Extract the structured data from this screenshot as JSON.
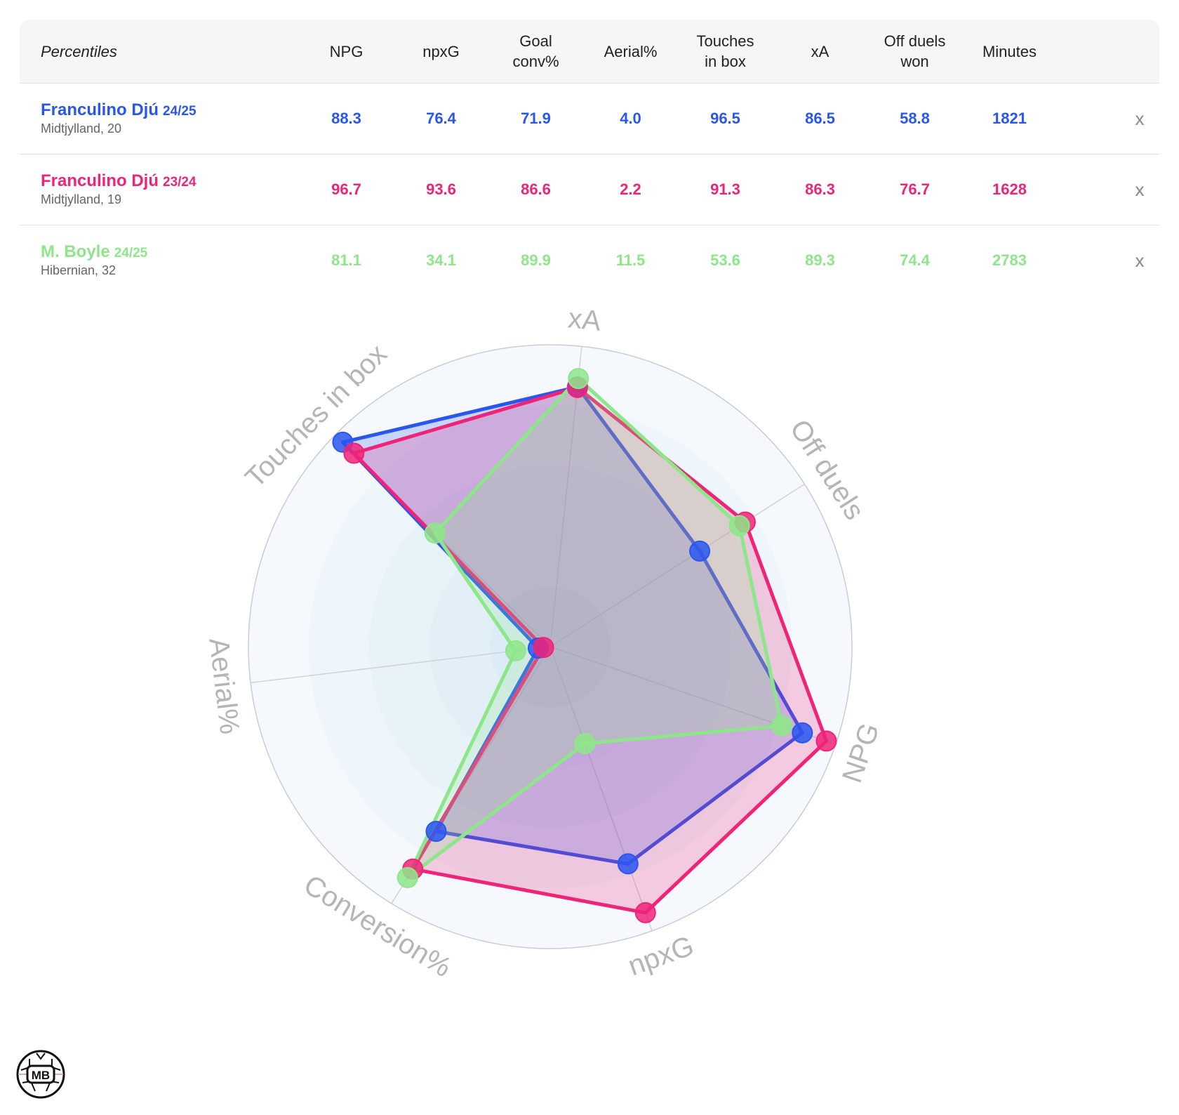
{
  "table": {
    "label_header": "Percentiles",
    "columns": [
      "NPG",
      "npxG",
      "Goal\nconv%",
      "Aerial%",
      "Touches\nin box",
      "xA",
      "Off duels\nwon",
      "Minutes"
    ],
    "remove_label": "x",
    "rows": [
      {
        "name": "Franculino Djú",
        "season": "24/25",
        "team": "Midtjylland, 20",
        "color": "#2a56f0",
        "values": [
          "88.3",
          "76.4",
          "71.9",
          "4.0",
          "96.5",
          "86.5",
          "58.8",
          "1821"
        ]
      },
      {
        "name": "Franculino Djú",
        "season": "23/24",
        "team": "Midtjylland, 19",
        "color": "#ef2478",
        "values": [
          "96.7",
          "93.6",
          "86.6",
          "2.2",
          "91.3",
          "86.3",
          "76.7",
          "1628"
        ]
      },
      {
        "name": "M. Boyle",
        "season": "24/25",
        "team": "Hibernian, 32",
        "color": "#8ee68a",
        "values": [
          "81.1",
          "34.1",
          "89.9",
          "11.5",
          "53.6",
          "89.3",
          "74.4",
          "2783"
        ]
      }
    ]
  },
  "chart_data": {
    "type": "radar",
    "axes": [
      "xA",
      "Off duels",
      "NPG",
      "npxG",
      "Conversion%",
      "Aerial%",
      "Touches in box"
    ],
    "range": [
      0,
      100
    ],
    "series": [
      {
        "name": "Franculino Djú 24/25",
        "color": "#2a56f0",
        "values": [
          86.5,
          58.8,
          88.3,
          76.4,
          71.9,
          4.0,
          96.5
        ]
      },
      {
        "name": "Franculino Djú 23/24",
        "color": "#ef2478",
        "values": [
          86.3,
          76.7,
          96.7,
          93.6,
          86.6,
          2.2,
          91.3
        ]
      },
      {
        "name": "M. Boyle 24/25",
        "color": "#8ee68a",
        "values": [
          89.3,
          74.4,
          81.1,
          34.1,
          89.9,
          11.5,
          53.6
        ]
      }
    ]
  },
  "logo": {
    "text": "MB"
  }
}
